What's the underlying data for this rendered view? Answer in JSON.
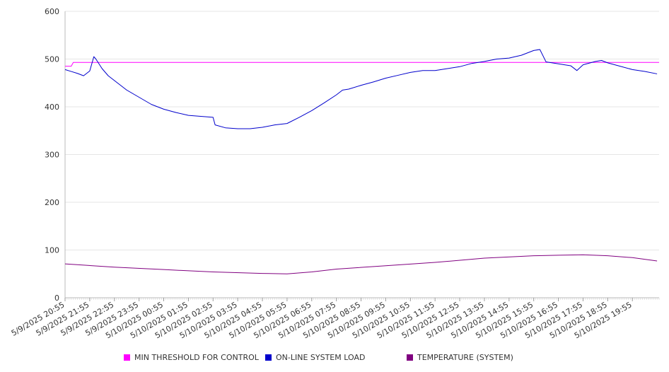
{
  "chart_data": {
    "type": "line",
    "x_categories": [
      "5/9/2025 20:55",
      "5/9/2025 21:55",
      "5/9/2025 22:55",
      "5/9/2025 23:55",
      "5/10/2025 00:55",
      "5/10/2025 01:55",
      "5/10/2025 02:55",
      "5/10/2025 03:55",
      "5/10/2025 04:55",
      "5/10/2025 05:55",
      "5/10/2025 06:55",
      "5/10/2025 07:55",
      "5/10/2025 08:55",
      "5/10/2025 09:55",
      "5/10/2025 10:55",
      "5/10/2025 11:55",
      "5/10/2025 12:55",
      "5/10/2025 13:55",
      "5/10/2025 14:55",
      "5/10/2025 15:55",
      "5/10/2025 16:55",
      "5/10/2025 17:55",
      "5/10/2025 18:55",
      "5/10/2025 19:55"
    ],
    "x_range": [
      "5/9/2025 20:55",
      "5/10/2025 21:00"
    ],
    "ylim": [
      0,
      600
    ],
    "y_ticks": [
      0,
      100,
      200,
      300,
      400,
      500,
      600
    ],
    "grid": true,
    "legend_position": "bottom",
    "series": [
      {
        "name": "MIN THRESHOLD FOR CONTROL",
        "color": "#ff00ff",
        "x": [
          "5/9/2025 20:55",
          "5/9/2025 21:10",
          "5/9/2025 21:15",
          "5/10/2025 21:00"
        ],
        "values": [
          485,
          485,
          493,
          493
        ]
      },
      {
        "name": "ON-LINE SYSTEM LOAD",
        "color": "#0000cc",
        "x": [
          "5/9/2025 20:55",
          "5/9/2025 21:10",
          "5/9/2025 21:25",
          "5/9/2025 21:40",
          "5/9/2025 21:55",
          "5/9/2025 22:05",
          "5/9/2025 22:10",
          "5/9/2025 22:25",
          "5/9/2025 22:40",
          "5/9/2025 22:55",
          "5/9/2025 23:25",
          "5/9/2025 23:55",
          "5/10/2025 00:25",
          "5/10/2025 00:55",
          "5/10/2025 01:25",
          "5/10/2025 01:55",
          "5/10/2025 02:25",
          "5/10/2025 02:55",
          "5/10/2025 03:00",
          "5/10/2025 03:25",
          "5/10/2025 03:55",
          "5/10/2025 04:25",
          "5/10/2025 04:55",
          "5/10/2025 05:25",
          "5/10/2025 05:55",
          "5/10/2025 06:25",
          "5/10/2025 06:55",
          "5/10/2025 07:25",
          "5/10/2025 07:55",
          "5/10/2025 08:10",
          "5/10/2025 08:25",
          "5/10/2025 08:55",
          "5/10/2025 09:25",
          "5/10/2025 09:55",
          "5/10/2025 10:25",
          "5/10/2025 10:55",
          "5/10/2025 11:25",
          "5/10/2025 11:55",
          "5/10/2025 12:25",
          "5/10/2025 12:55",
          "5/10/2025 13:25",
          "5/10/2025 13:55",
          "5/10/2025 14:25",
          "5/10/2025 14:55",
          "5/10/2025 15:25",
          "5/10/2025 15:55",
          "5/10/2025 16:10",
          "5/10/2025 16:25",
          "5/10/2025 16:55",
          "5/10/2025 17:25",
          "5/10/2025 17:40",
          "5/10/2025 17:55",
          "5/10/2025 18:25",
          "5/10/2025 18:40",
          "5/10/2025 18:55",
          "5/10/2025 19:25",
          "5/10/2025 19:55",
          "5/10/2025 20:25",
          "5/10/2025 20:55"
        ],
        "values": [
          478,
          474,
          470,
          465,
          475,
          505,
          500,
          480,
          465,
          455,
          435,
          420,
          405,
          395,
          388,
          382,
          380,
          378,
          362,
          356,
          354,
          354,
          357,
          362,
          365,
          378,
          392,
          408,
          425,
          435,
          437,
          445,
          452,
          460,
          466,
          472,
          476,
          476,
          480,
          484,
          491,
          495,
          500,
          502,
          508,
          518,
          520,
          494,
          490,
          486,
          476,
          488,
          495,
          497,
          492,
          485,
          478,
          474,
          469
        ]
      },
      {
        "name": "TEMPERATURE (SYSTEM)",
        "color": "#800080",
        "x": [
          "5/9/2025 20:55",
          "5/9/2025 22:55",
          "5/10/2025 00:55",
          "5/10/2025 02:55",
          "5/10/2025 04:55",
          "5/10/2025 05:55",
          "5/10/2025 06:55",
          "5/10/2025 07:55",
          "5/10/2025 09:55",
          "5/10/2025 11:55",
          "5/10/2025 13:55",
          "5/10/2025 15:55",
          "5/10/2025 16:55",
          "5/10/2025 17:55",
          "5/10/2025 18:55",
          "5/10/2025 19:55",
          "5/10/2025 20:55"
        ],
        "values": [
          71,
          64,
          59,
          54,
          51,
          50,
          54,
          60,
          67,
          74,
          83,
          88,
          89,
          90,
          88,
          84,
          77
        ]
      }
    ]
  }
}
